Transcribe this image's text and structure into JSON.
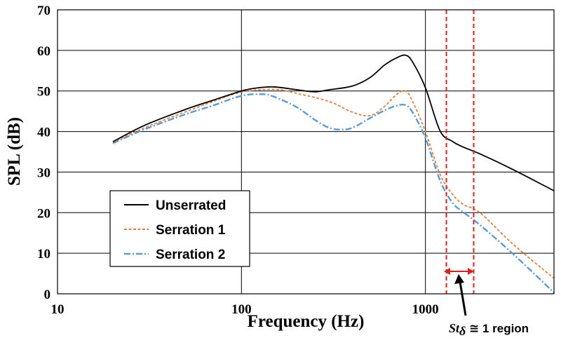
{
  "chart_data": {
    "type": "line",
    "xlabel": "Frequency (Hz)",
    "ylabel": "SPL (dB)",
    "xscale": "log",
    "xlim": [
      10,
      5000
    ],
    "ylim": [
      0,
      70
    ],
    "x_ticks": [
      "10",
      "100",
      "1000"
    ],
    "y_ticks": [
      "0",
      "10",
      "20",
      "30",
      "40",
      "50",
      "60",
      "70"
    ],
    "grid": true,
    "legend_position": "lower-left",
    "series": [
      {
        "name": "Unserrated",
        "color": "#000000",
        "style": "solid",
        "x": [
          20,
          30,
          50,
          70,
          100,
          120,
          150,
          200,
          250,
          300,
          400,
          500,
          600,
          700,
          780,
          850,
          1000,
          1200,
          1400,
          1600,
          2000,
          3000,
          5000
        ],
        "y": [
          37.5,
          41.6,
          45.5,
          47.7,
          50.0,
          50.7,
          51.0,
          50.3,
          49.8,
          50.3,
          51.2,
          53.3,
          56.4,
          58.2,
          58.8,
          57.2,
          50.8,
          40.2,
          37.6,
          36.2,
          34.4,
          30.6,
          25.4
        ]
      },
      {
        "name": "Serration 1",
        "color": "#E07B39",
        "style": "dashed",
        "x": [
          20,
          30,
          50,
          70,
          100,
          150,
          200,
          300,
          400,
          500,
          600,
          700,
          780,
          850,
          1000,
          1200,
          1400,
          1600,
          2000,
          3000,
          5000
        ],
        "y": [
          37.3,
          41.0,
          44.9,
          47.4,
          49.7,
          50.4,
          49.4,
          47.4,
          44.8,
          43.9,
          46.2,
          49.2,
          50.0,
          47.5,
          40.0,
          29.5,
          24.6,
          22.1,
          19.8,
          12.2,
          3.8
        ]
      },
      {
        "name": "Serration 2",
        "color": "#5B9BD5",
        "style": "dash-dot",
        "x": [
          20,
          30,
          50,
          70,
          100,
          130,
          150,
          200,
          250,
          300,
          350,
          400,
          500,
          600,
          700,
          780,
          850,
          1000,
          1200,
          1400,
          1600,
          2000,
          3000,
          5000
        ],
        "y": [
          37.1,
          40.6,
          44.3,
          46.4,
          48.8,
          49.2,
          48.6,
          46.0,
          42.9,
          40.9,
          40.5,
          40.9,
          43.3,
          45.2,
          46.4,
          46.5,
          44.8,
          38.4,
          28.0,
          22.5,
          20.2,
          16.8,
          9.8,
          0.3
        ]
      }
    ],
    "region": {
      "x_min": 1300,
      "x_max": 1830,
      "color": "#E0201C",
      "label_symbol": "St",
      "label_subscript": "δ",
      "label_rest": " ≅ 1 region"
    }
  }
}
